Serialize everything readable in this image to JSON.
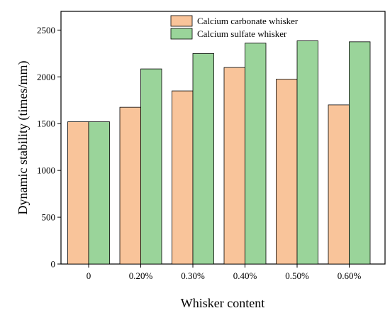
{
  "chart_data": {
    "type": "bar",
    "categories": [
      "0",
      "0.20%",
      "0.30%",
      "0.40%",
      "0.50%",
      "0.60%"
    ],
    "series": [
      {
        "name": "Calcium carbonate whisker",
        "values": [
          1520,
          1675,
          1850,
          2100,
          1975,
          1700
        ],
        "color": "#f9c49a"
      },
      {
        "name": "Calcium sulfate whisker",
        "values": [
          1520,
          2085,
          2250,
          2360,
          2385,
          2375
        ],
        "color": "#9ad49a"
      }
    ],
    "xlabel": "Whisker content",
    "ylabel": "Dynamic stability (times/mm)",
    "ylim": [
      0,
      2700
    ],
    "yticks": [
      0,
      500,
      1000,
      1500,
      2000,
      2500
    ],
    "grid": false,
    "legend_position": "top-right"
  }
}
